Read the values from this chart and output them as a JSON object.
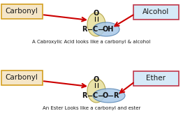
{
  "bg_color": "#ffffff",
  "arrow_color": "#cc0000",
  "text_color": "#1a1a1a",
  "formula_color": "#111111",
  "top_diagram": {
    "carbonyl_label": "Carbonyl",
    "carbonyl_box_color": "#f5e6c8",
    "carbonyl_box_edge": "#d4a020",
    "alcohol_label": "Alcohol",
    "alcohol_box_color": "#d6eaf8",
    "alcohol_box_edge": "#c0374a",
    "caption": "A Cabroxylic Acid looks like a carbonyl & alcohol",
    "ellipse1_color": "#e8e0a0",
    "ellipse2_color": "#a8c8e8",
    "o_label": "O",
    "c_label": "C",
    "r_label": "R",
    "oh_label": "OH"
  },
  "bottom_diagram": {
    "carbonyl_label": "Carbonyl",
    "carbonyl_box_color": "#f5e6c8",
    "carbonyl_box_edge": "#d4a020",
    "ether_label": "Ether",
    "ether_box_color": "#d6eaf8",
    "ether_box_edge": "#c0374a",
    "caption": "An Ester Looks like a carbonyl and ester",
    "ellipse1_color": "#e8e0a0",
    "ellipse2_color": "#a8c8e8",
    "o_label": "O",
    "c_label": "C",
    "r_label": "R",
    "o_mid_label": "O",
    "rprime_label": "R’"
  }
}
